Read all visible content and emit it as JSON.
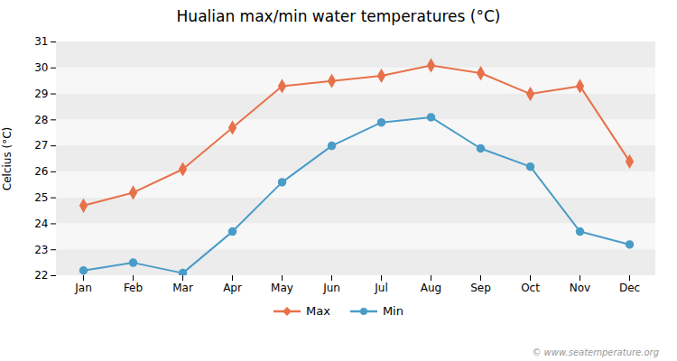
{
  "chart_data": {
    "type": "line",
    "title": "Hualian max/min water temperatures (°C)",
    "ylabel": "Celcius (°C)",
    "annotations": [
      "© www.seatemperature.org"
    ],
    "categories": [
      "Jan",
      "Feb",
      "Mar",
      "Apr",
      "May",
      "Jun",
      "Jul",
      "Aug",
      "Sep",
      "Oct",
      "Nov",
      "Dec"
    ],
    "series": [
      {
        "name": "Max",
        "color": "#e8714a",
        "marker": "diamond",
        "values": [
          24.7,
          25.2,
          26.1,
          27.7,
          29.3,
          29.5,
          29.7,
          30.1,
          29.8,
          29.0,
          29.3,
          26.4
        ]
      },
      {
        "name": "Min",
        "color": "#4a9cc8",
        "marker": "circle",
        "values": [
          22.2,
          22.5,
          22.1,
          23.7,
          25.6,
          27.0,
          27.9,
          28.1,
          26.9,
          26.2,
          23.7,
          23.2
        ]
      }
    ],
    "ylim": [
      22,
      31
    ],
    "yticks": [
      22,
      23,
      24,
      25,
      26,
      27,
      28,
      29,
      30,
      31
    ],
    "grid": true,
    "legend": "bottom"
  }
}
